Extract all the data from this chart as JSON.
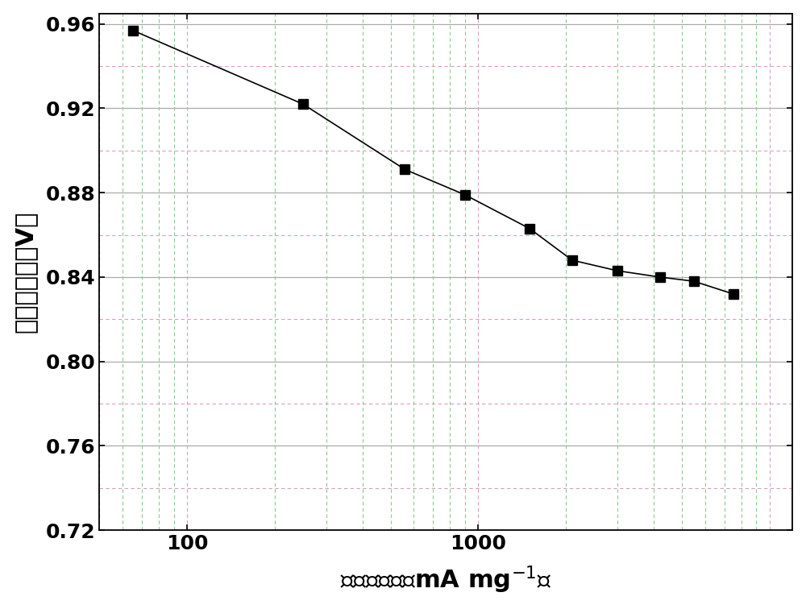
{
  "x": [
    65,
    250,
    560,
    900,
    1500,
    2100,
    3000,
    4200,
    5500,
    7500
  ],
  "y": [
    0.957,
    0.922,
    0.891,
    0.879,
    0.863,
    0.848,
    0.843,
    0.84,
    0.838,
    0.832
  ],
  "xlabel_zh": "质量比活性（mA mg",
  "xlabel_sup": "-1",
  "xlabel_end": "）",
  "ylabel_zh": "单电池电压（V）",
  "xlim": [
    50,
    12000
  ],
  "ylim": [
    0.72,
    0.965
  ],
  "yticks": [
    0.72,
    0.76,
    0.8,
    0.84,
    0.88,
    0.92,
    0.96
  ],
  "xticks_major": [
    100,
    1000
  ],
  "line_color": "#000000",
  "marker_color": "#000000",
  "marker_size": 8,
  "line_width": 1.2,
  "solid_grid_color": "#aaaaaa",
  "dashed_minor_color": "#c8c8c8",
  "dashed_green_color": "#90c890",
  "dashed_pink_color": "#d8a0c0",
  "background_color": "#ffffff",
  "label_fontsize": 22,
  "tick_fontsize": 18,
  "ytick_minor": [
    0.74,
    0.78,
    0.82,
    0.86,
    0.9,
    0.94
  ]
}
